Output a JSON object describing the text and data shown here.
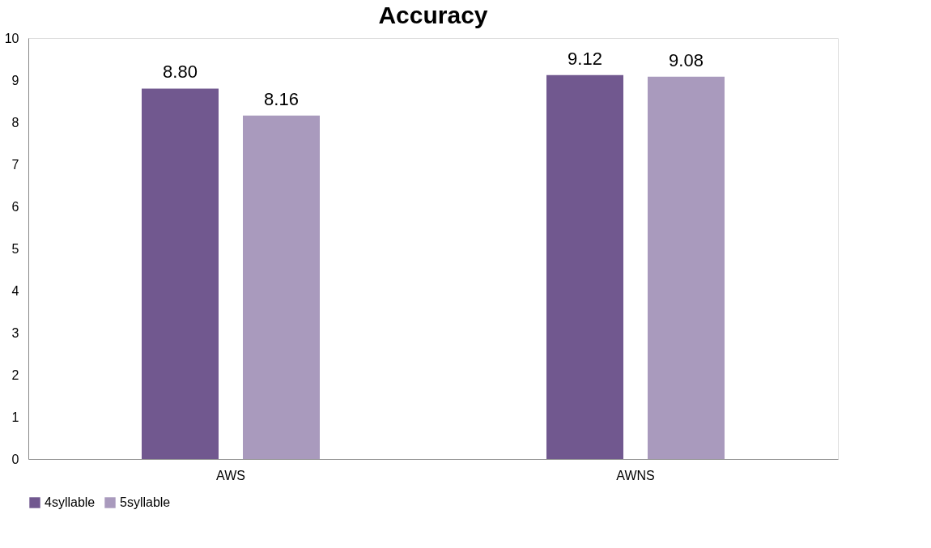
{
  "chart_data": {
    "type": "bar",
    "title": "Accuracy",
    "categories": [
      "AWS",
      "AWNS"
    ],
    "series": [
      {
        "name": "4syllable",
        "color": "#71588f",
        "values": [
          8.8,
          9.12
        ],
        "value_labels": [
          "8.80",
          "9.12"
        ]
      },
      {
        "name": "5syllable",
        "color": "#a99abd",
        "values": [
          8.16,
          9.08
        ],
        "value_labels": [
          "8.16",
          "9.08"
        ]
      }
    ],
    "ylim": [
      0,
      10
    ],
    "yticks": [
      0,
      1,
      2,
      3,
      4,
      5,
      6,
      7,
      8,
      9,
      10
    ],
    "grid": false,
    "legend": "bottom"
  }
}
